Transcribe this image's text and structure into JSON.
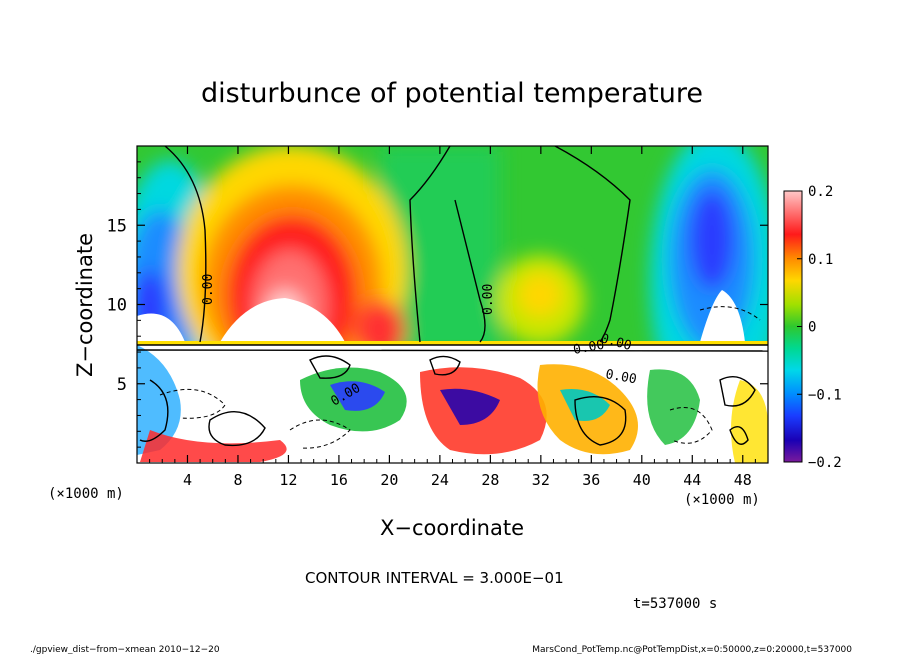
{
  "chart_data": {
    "type": "heatmap",
    "title": "disturbunce of potential temperature",
    "xlabel": "X−coordinate",
    "ylabel": "Z−coordinate",
    "x_unit": "(×1000 m)",
    "y_unit": "(×1000 m)",
    "xlim": [
      0,
      50
    ],
    "ylim": [
      0,
      20
    ],
    "x_ticks": [
      "4",
      "8",
      "12",
      "16",
      "20",
      "24",
      "28",
      "32",
      "36",
      "40",
      "44",
      "48"
    ],
    "x_tick_values": [
      4,
      8,
      12,
      16,
      20,
      24,
      28,
      32,
      36,
      40,
      44,
      48
    ],
    "y_ticks": [
      "5",
      "10",
      "15"
    ],
    "y_tick_values": [
      5,
      10,
      15
    ],
    "colorbar": {
      "range": [
        -0.2,
        0.2
      ],
      "ticks": [
        "0.2",
        "0.1",
        "0",
        "−0.1",
        "−0.2"
      ],
      "tick_values": [
        0.2,
        0.1,
        0,
        -0.1,
        -0.2
      ]
    },
    "contour_labels": [
      "0.00",
      "0.00",
      "0.00",
      "0.00",
      "0.00",
      "0.00"
    ],
    "contour_interval_text": "CONTOUR INTERVAL = 3.000E−01",
    "time_text": "t=537000 s",
    "features": [
      {
        "kind": "warm anomaly",
        "x": 13,
        "z": 10.5,
        "value": 0.2
      },
      {
        "kind": "cold anomaly",
        "x": 3,
        "z": 10,
        "value": -0.2
      },
      {
        "kind": "cold anomaly",
        "x": 46.5,
        "z": 11,
        "value": -0.2
      },
      {
        "kind": "weak positive",
        "x": 32,
        "z": 10,
        "value": 0.08
      },
      {
        "kind": "weak negative",
        "x": 27,
        "z": 12,
        "value": -0.02
      }
    ]
  },
  "footer": {
    "left": "./gpview_dist−from−xmean  2010−12−20",
    "right": "MarsCond_PotTemp.nc@PotTempDist,x=0:50000,z=0:20000,t=537000"
  }
}
